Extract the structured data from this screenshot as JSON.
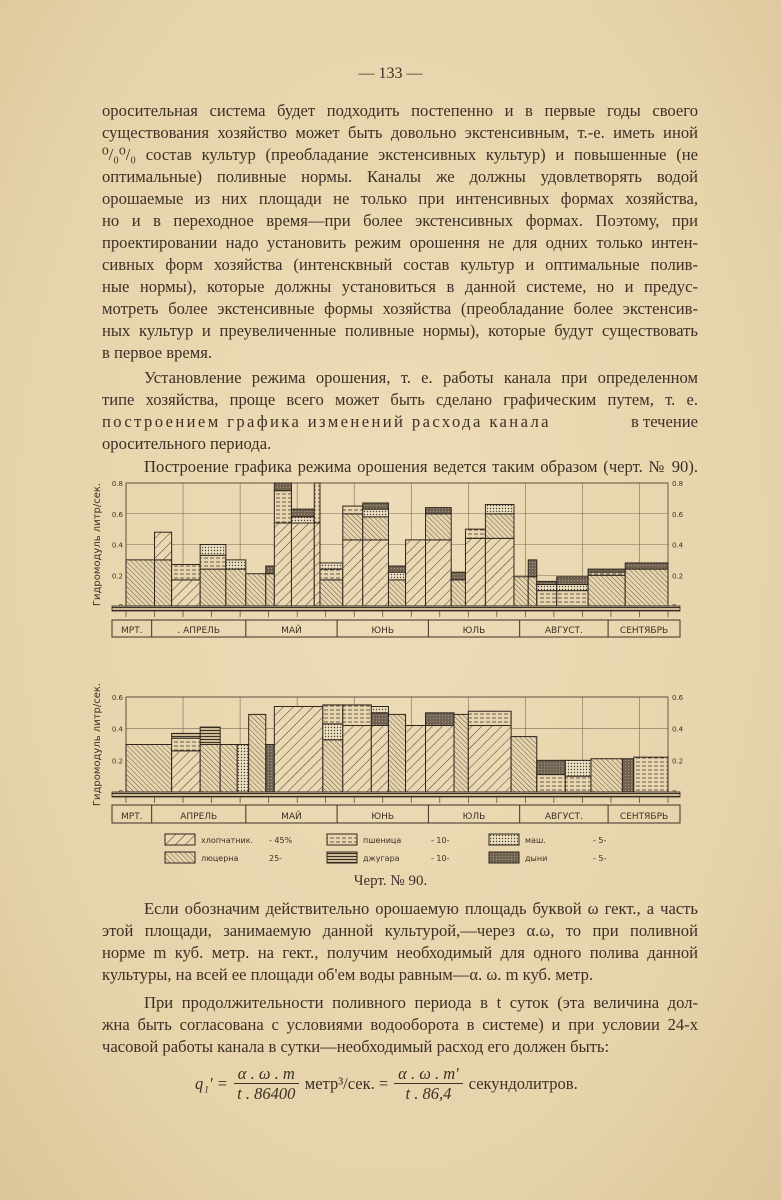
{
  "page_number": "— 133 —",
  "paragraph1": [
    "оросительная система будет подходить постепенно и в первые годы своего",
    "существования хозяйство может быть довольно экстенсивным, т.-е. иметь иной",
    "⁰/₀⁰/₀ состав культур (преобладание экстенсивных культур) и повышенные (не",
    "оптимальные) поливные нормы. Каналы же должны удовлетворять водой",
    "орошаемые из них площади не только при интенсивных формах хозяйства,",
    "но и в переходное время—при более экстенсивных формах. Поэтому, при",
    "проектировании надо установить режим орошення не для одних только интен-",
    "сивных форм хозяйства (интенсквный состав культур и оптимальные полив-",
    "ные нормы), которые должны установиться в данной системе, но и предус-",
    "мотреть более экстенсивные формы хозяйства (преобладание более экстенсив-",
    "ных культур и преувеличенные поливные нормы), которые будут существовать",
    "в первое время."
  ],
  "paragraph2": {
    "line1": "Установление режима орошения, т. е. работы канала при определенном",
    "line2": "типе хозяйства, проще всего может быть сделано графическим путем, т. е.",
    "line3_a": "построением графика изменений расхода канала",
    "line3_b": "в течение",
    "line4": "оросительного периода."
  },
  "paragraph3": "Построение графика режима орошения ведется таким образом (черт. № 90).",
  "figure_caption": "Черт. № 90.",
  "legend": [
    {
      "crop": "cotton",
      "label": "хлопчатник.",
      "share": "- 45%"
    },
    {
      "crop": "lucerne",
      "label": "люцерна",
      "share": "25-"
    },
    {
      "crop": "wheat",
      "label": "пшеница",
      "share": "- 10-"
    },
    {
      "crop": "djugara",
      "label": "джугара",
      "share": "- 10-"
    },
    {
      "crop": "mash",
      "label": "маш.",
      "share": "- 5-"
    },
    {
      "crop": "melons",
      "label": "дыни",
      "share": "- 5-"
    }
  ],
  "chart_data": [
    {
      "type": "bar",
      "stacked": true,
      "ylabel": "Гидромодуль литр/сек.",
      "ylim": [
        0,
        0.8
      ],
      "yticks": [
        "0",
        "0.2",
        "0.4",
        "0.6",
        "0.8"
      ],
      "right_axis": true,
      "grid": true,
      "xlim": [
        0,
        19
      ],
      "months": [
        {
          "label": "МРТ.",
          "span": [
            0,
            0.9
          ]
        },
        {
          "label": ". АПРЕЛЬ",
          "span": [
            0.9,
            4.2
          ]
        },
        {
          "label": "МАЙ",
          "span": [
            4.2,
            7.4
          ]
        },
        {
          "label": "ЮНЬ",
          "span": [
            7.4,
            10.6
          ]
        },
        {
          "label": "ЮЛЬ",
          "span": [
            10.6,
            13.8
          ]
        },
        {
          "label": "АВГУСТ.",
          "span": [
            13.8,
            16.9
          ]
        },
        {
          "label": "СЕНТЯБРЬ",
          "span": [
            16.9,
            19
          ]
        }
      ],
      "bars": [
        {
          "x": [
            0,
            1.0
          ],
          "segments": [
            [
              "lucerne",
              0,
              0.3
            ]
          ]
        },
        {
          "x": [
            1.0,
            1.6
          ],
          "segments": [
            [
              "lucerne",
              0,
              0.3
            ],
            [
              "cotton",
              0.3,
              0.48
            ]
          ]
        },
        {
          "x": [
            1.6,
            2.6
          ],
          "segments": [
            [
              "cotton",
              0,
              0.17
            ],
            [
              "wheat",
              0.17,
              0.27
            ]
          ]
        },
        {
          "x": [
            2.6,
            3.5
          ],
          "segments": [
            [
              "lucerne",
              0,
              0.24
            ],
            [
              "wheat",
              0.24,
              0.33
            ],
            [
              "mash",
              0.33,
              0.4
            ]
          ]
        },
        {
          "x": [
            3.5,
            4.2
          ],
          "segments": [
            [
              "lucerne",
              0,
              0.24
            ],
            [
              "mash",
              0.24,
              0.3
            ]
          ]
        },
        {
          "x": [
            4.2,
            4.9
          ],
          "segments": [
            [
              "lucerne",
              0,
              0.21
            ]
          ]
        },
        {
          "x": [
            4.9,
            5.2
          ],
          "segments": [
            [
              "lucerne",
              0,
              0.21
            ],
            [
              "melons",
              0.21,
              0.26
            ]
          ]
        },
        {
          "x": [
            5.2,
            5.8
          ],
          "segments": [
            [
              "cotton",
              0,
              0.54
            ],
            [
              "wheat",
              0.54,
              0.75
            ],
            [
              "melons",
              0.75,
              0.8
            ]
          ]
        },
        {
          "x": [
            5.8,
            6.6
          ],
          "segments": [
            [
              "cotton",
              0,
              0.54
            ],
            [
              "mash",
              0.54,
              0.58
            ],
            [
              "melons",
              0.58,
              0.63
            ]
          ]
        },
        {
          "x": [
            6.6,
            6.8
          ],
          "segments": [
            [
              "cotton",
              0,
              0.54
            ],
            [
              "wheat",
              0.54,
              0.8
            ]
          ]
        },
        {
          "x": [
            6.8,
            7.6
          ],
          "segments": [
            [
              "lucerne",
              0,
              0.17
            ],
            [
              "wheat",
              0.17,
              0.24
            ],
            [
              "mash",
              0.24,
              0.28
            ]
          ]
        },
        {
          "x": [
            7.6,
            8.3
          ],
          "segments": [
            [
              "cotton",
              0,
              0.43
            ],
            [
              "lucerne",
              0.43,
              0.6
            ],
            [
              "wheat",
              0.6,
              0.65
            ]
          ]
        },
        {
          "x": [
            8.3,
            9.2
          ],
          "segments": [
            [
              "cotton",
              0,
              0.43
            ],
            [
              "lucerne",
              0.43,
              0.58
            ],
            [
              "mash",
              0.58,
              0.63
            ],
            [
              "melons",
              0.63,
              0.67
            ]
          ]
        },
        {
          "x": [
            9.2,
            9.8
          ],
          "segments": [
            [
              "lucerne",
              0,
              0.17
            ],
            [
              "mash",
              0.17,
              0.22
            ],
            [
              "melons",
              0.22,
              0.26
            ]
          ]
        },
        {
          "x": [
            9.8,
            10.5
          ],
          "segments": [
            [
              "cotton",
              0,
              0.43
            ]
          ]
        },
        {
          "x": [
            10.5,
            11.4
          ],
          "segments": [
            [
              "cotton",
              0,
              0.43
            ],
            [
              "lucerne",
              0.43,
              0.6
            ],
            [
              "melons",
              0.6,
              0.64
            ]
          ]
        },
        {
          "x": [
            11.4,
            11.9
          ],
          "segments": [
            [
              "lucerne",
              0,
              0.17
            ],
            [
              "melons",
              0.17,
              0.22
            ]
          ]
        },
        {
          "x": [
            11.9,
            12.6
          ],
          "segments": [
            [
              "cotton",
              0,
              0.44
            ],
            [
              "wheat",
              0.44,
              0.5
            ]
          ]
        },
        {
          "x": [
            12.6,
            13.6
          ],
          "segments": [
            [
              "cotton",
              0,
              0.44
            ],
            [
              "lucerne",
              0.44,
              0.6
            ],
            [
              "mash",
              0.6,
              0.66
            ]
          ]
        },
        {
          "x": [
            13.6,
            14.1
          ],
          "segments": [
            [
              "lucerne",
              0,
              0.19
            ]
          ]
        },
        {
          "x": [
            14.1,
            14.4
          ],
          "segments": [
            [
              "lucerne",
              0,
              0.19
            ],
            [
              "melons",
              0.19,
              0.3
            ]
          ]
        },
        {
          "x": [
            14.4,
            15.1
          ],
          "segments": [
            [
              "wheat",
              0,
              0.1
            ],
            [
              "mash",
              0.1,
              0.14
            ],
            [
              "melons",
              0.14,
              0.16
            ]
          ]
        },
        {
          "x": [
            15.1,
            16.2
          ],
          "segments": [
            [
              "wheat",
              0,
              0.1
            ],
            [
              "mash",
              0.1,
              0.14
            ],
            [
              "melons",
              0.14,
              0.19
            ]
          ]
        },
        {
          "x": [
            16.2,
            17.5
          ],
          "segments": [
            [
              "lucerne",
              0,
              0.2
            ],
            [
              "wheat",
              0.2,
              0.22
            ],
            [
              "melons",
              0.22,
              0.24
            ]
          ]
        },
        {
          "x": [
            17.5,
            19.0
          ],
          "segments": [
            [
              "lucerne",
              0,
              0.24
            ],
            [
              "melons",
              0.24,
              0.28
            ]
          ]
        }
      ]
    },
    {
      "type": "bar",
      "stacked": true,
      "ylabel": "Гидромодуль литр/сек.",
      "ylim": [
        0,
        0.6
      ],
      "yticks": [
        "0",
        "0.2",
        "0.4",
        "0.6"
      ],
      "right_axis": true,
      "grid": true,
      "xlim": [
        0,
        19
      ],
      "months": [
        {
          "label": "МРТ.",
          "span": [
            0,
            0.9
          ]
        },
        {
          "label": "АПРЕЛЬ",
          "span": [
            0.9,
            4.2
          ]
        },
        {
          "label": "МАЙ",
          "span": [
            4.2,
            7.4
          ]
        },
        {
          "label": "ЮНЬ",
          "span": [
            7.4,
            10.6
          ]
        },
        {
          "label": "ЮЛЬ",
          "span": [
            10.6,
            13.8
          ]
        },
        {
          "label": "АВГУСТ.",
          "span": [
            13.8,
            16.9
          ]
        },
        {
          "label": "СЕНТЯБРЬ",
          "span": [
            16.9,
            19
          ]
        }
      ],
      "bars": [
        {
          "x": [
            0,
            1.6
          ],
          "segments": [
            [
              "lucerne",
              0,
              0.3
            ]
          ]
        },
        {
          "x": [
            1.6,
            2.6
          ],
          "segments": [
            [
              "cotton",
              0,
              0.26
            ],
            [
              "wheat",
              0.26,
              0.34
            ],
            [
              "djugara",
              0.34,
              0.37
            ]
          ]
        },
        {
          "x": [
            2.6,
            3.3
          ],
          "segments": [
            [
              "lucerne",
              0,
              0.3
            ],
            [
              "djugara",
              0.3,
              0.41
            ]
          ]
        },
        {
          "x": [
            3.3,
            3.9
          ],
          "segments": [
            [
              "lucerne",
              0,
              0.3
            ]
          ]
        },
        {
          "x": [
            3.9,
            4.3
          ],
          "segments": [
            [
              "mash",
              0,
              0.3
            ]
          ]
        },
        {
          "x": [
            4.3,
            4.9
          ],
          "segments": [
            [
              "lucerne",
              0,
              0.49
            ]
          ]
        },
        {
          "x": [
            4.9,
            5.2
          ],
          "segments": [
            [
              "melons",
              0,
              0.3
            ]
          ]
        },
        {
          "x": [
            5.2,
            6.9
          ],
          "segments": [
            [
              "cotton",
              0,
              0.54
            ]
          ]
        },
        {
          "x": [
            6.9,
            7.6
          ],
          "segments": [
            [
              "lucerne",
              0,
              0.33
            ],
            [
              "mash",
              0.33,
              0.43
            ],
            [
              "wheat",
              0.43,
              0.55
            ]
          ]
        },
        {
          "x": [
            7.6,
            8.6
          ],
          "segments": [
            [
              "cotton",
              0,
              0.42
            ],
            [
              "wheat",
              0.42,
              0.55
            ]
          ]
        },
        {
          "x": [
            8.6,
            9.2
          ],
          "segments": [
            [
              "cotton",
              0,
              0.42
            ],
            [
              "melons",
              0.42,
              0.5
            ],
            [
              "mash",
              0.5,
              0.54
            ]
          ]
        },
        {
          "x": [
            9.2,
            9.8
          ],
          "segments": [
            [
              "lucerne",
              0,
              0.49
            ]
          ]
        },
        {
          "x": [
            9.8,
            10.5
          ],
          "segments": [
            [
              "cotton",
              0,
              0.42
            ]
          ]
        },
        {
          "x": [
            10.5,
            11.5
          ],
          "segments": [
            [
              "cotton",
              0,
              0.42
            ],
            [
              "melons",
              0.42,
              0.5
            ]
          ]
        },
        {
          "x": [
            11.5,
            12.0
          ],
          "segments": [
            [
              "lucerne",
              0,
              0.49
            ]
          ]
        },
        {
          "x": [
            12.0,
            13.5
          ],
          "segments": [
            [
              "cotton",
              0,
              0.42
            ],
            [
              "wheat",
              0.42,
              0.51
            ]
          ]
        },
        {
          "x": [
            13.5,
            14.4
          ],
          "segments": [
            [
              "lucerne",
              0,
              0.35
            ]
          ]
        },
        {
          "x": [
            14.4,
            15.4
          ],
          "segments": [
            [
              "wheat",
              0,
              0.11
            ],
            [
              "melons",
              0.11,
              0.2
            ]
          ]
        },
        {
          "x": [
            15.4,
            16.3
          ],
          "segments": [
            [
              "wheat",
              0,
              0.1
            ],
            [
              "mash",
              0.1,
              0.2
            ]
          ]
        },
        {
          "x": [
            16.3,
            17.4
          ],
          "segments": [
            [
              "lucerne",
              0,
              0.21
            ]
          ]
        },
        {
          "x": [
            17.4,
            17.8
          ],
          "segments": [
            [
              "melons",
              0,
              0.21
            ]
          ]
        },
        {
          "x": [
            17.8,
            19.0
          ],
          "segments": [
            [
              "wheat",
              0,
              0.22
            ]
          ]
        }
      ]
    }
  ],
  "paragraph4": [
    "Если обозначим действительно орошаемую площадь буквой ω гект., а часть",
    "этой площади, занимаемую данной культурой,—через α.ω, то при поливной",
    "норме m куб. метр. на гект., получим необходимый для одного полива данной",
    "культуры, на всей ее площади об'ем воды равным—α. ω. m куб. метр."
  ],
  "paragraph5": [
    "При продолжительности поливного периода в t суток (эта величина дол-",
    "жна быть согласована с условиями водооборота в системе) и при условии 24-х",
    "часовой работы канала в сутки—необходимый расход его должен быть:"
  ],
  "formula": {
    "lhs": "q₁' =",
    "num1": "α . ω . m",
    "den1": "t . 86400",
    "unit1": "метр³/сек. =",
    "num2": "α . ω . m'",
    "den2": "t . 86,4",
    "unit2": "секундолитров."
  }
}
